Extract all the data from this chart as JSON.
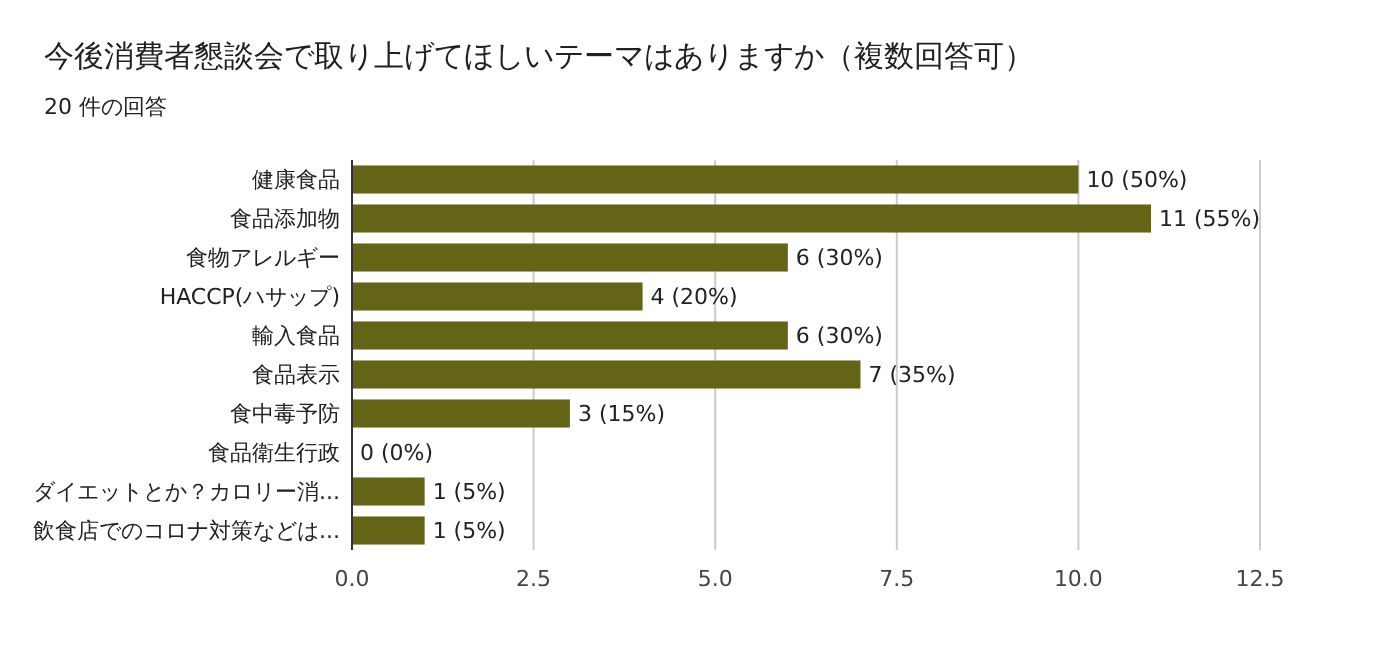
{
  "chart_data": {
    "type": "bar",
    "orientation": "horizontal",
    "title": "今後消費者懇談会で取り上げてほしいテーマはありますか（複数回答可）",
    "subtitle": "20 件の回答",
    "categories": [
      "健康食品",
      "食品添加物",
      "食物アレルギー",
      "HACCP(ハサップ)",
      "輸入食品",
      "食品表示",
      "食中毒予防",
      "食品衛生行政",
      "ダイエットとか？カロリー消...",
      "飲食店でのコロナ対策などは..."
    ],
    "values": [
      10,
      11,
      6,
      4,
      6,
      7,
      3,
      0,
      1,
      1
    ],
    "value_labels": [
      "10 (50%)",
      "11 (55%)",
      "6 (30%)",
      "4 (20%)",
      "6 (30%)",
      "7 (35%)",
      "3 (15%)",
      "0 (0%)",
      "1 (5%)",
      "1 (5%)"
    ],
    "color": "#646416",
    "xlim": [
      0,
      12.5
    ],
    "xticks": [
      {
        "value": 0,
        "label": "0.0"
      },
      {
        "value": 2.5,
        "label": "2.5"
      },
      {
        "value": 5,
        "label": "5.0"
      },
      {
        "value": 7.5,
        "label": "7.5"
      },
      {
        "value": 10,
        "label": "10.0"
      },
      {
        "value": 12.5,
        "label": "12.5"
      }
    ],
    "grid": "x"
  }
}
